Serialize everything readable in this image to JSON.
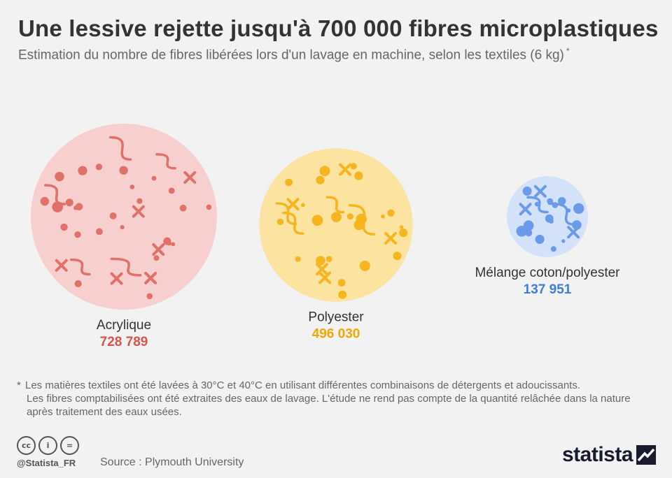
{
  "header": {
    "title": "Une lessive rejette jusqu'à 700 000 fibres microplastiques",
    "subtitle": "Estimation du nombre de fibres libérées lors d'un lavage en machine, selon les textiles (6 kg)",
    "subtitle_mark": "*"
  },
  "chart_data": {
    "type": "bubble",
    "title": "Une lessive rejette jusqu'à 700 000 fibres microplastiques",
    "subtitle": "Estimation du nombre de fibres libérées lors d'un lavage en machine, selon les textiles (6 kg)",
    "categories": [
      "Acrylique",
      "Polyester",
      "Mélange coton/polyester"
    ],
    "values": [
      728789,
      496030,
      137951
    ],
    "value_labels": [
      "728 789",
      "496 030",
      "137 951"
    ],
    "series": [
      {
        "name": "Acrylique",
        "value": 728789,
        "label": "728 789",
        "fill": "#f7cfcf",
        "accent": "#e07068",
        "value_color": "#d9534a"
      },
      {
        "name": "Polyester",
        "value": 496030,
        "label": "496 030",
        "fill": "#fde3a0",
        "accent": "#f6b51e",
        "value_color": "#f0a800"
      },
      {
        "name": "Mélange coton/polyester",
        "value": 137951,
        "label": "137 951",
        "fill": "#d3e2f8",
        "accent": "#6b9be8",
        "value_color": "#3f7fd8"
      }
    ],
    "legend": "none",
    "grid": false
  },
  "footnote": {
    "star": "*",
    "line1": "Les matières textiles ont été lavées à 30°C et 40°C en utilisant différentes combinaisons de détergents et adoucissants.",
    "line2": "Les fibres comptabilisées ont été extraites des eaux de lavage. L'étude ne rend pas compte de la quantité relâchée dans la nature après traitement des eaux usées."
  },
  "footer": {
    "cc_icons": [
      "cc-icon",
      "by-icon",
      "nd-icon"
    ],
    "cc_labels": [
      "cc",
      "i",
      "="
    ],
    "handle": "@Statista_FR",
    "source": "Source : Plymouth University",
    "brand": "statista"
  }
}
